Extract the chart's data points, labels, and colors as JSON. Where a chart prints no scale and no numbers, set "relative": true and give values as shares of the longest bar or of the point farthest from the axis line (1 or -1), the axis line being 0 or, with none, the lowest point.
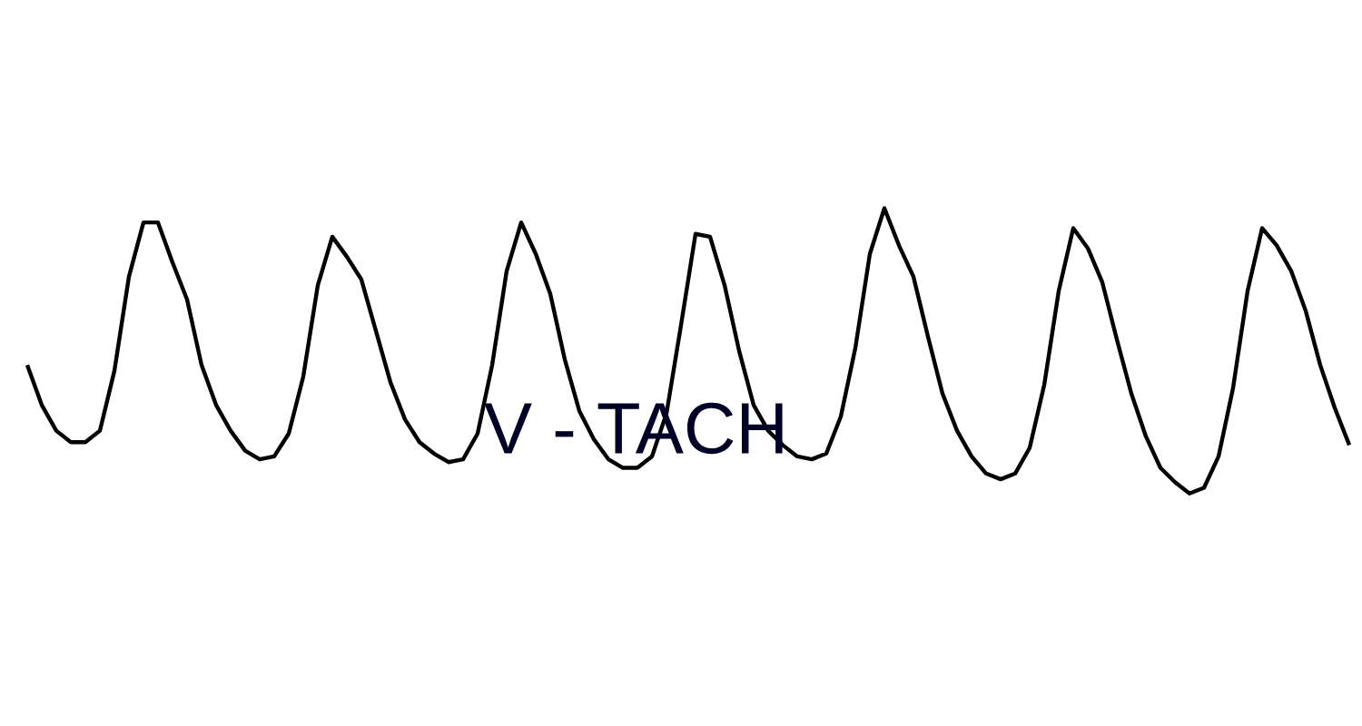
{
  "chart_data": {
    "type": "line",
    "relative": true,
    "annotations": [
      "V - TACH"
    ],
    "tick_labels": false,
    "categories": [
      null,
      null,
      null,
      null,
      null,
      null,
      null,
      null,
      null,
      null,
      null,
      null,
      null,
      null,
      null,
      null,
      null,
      null,
      null,
      null,
      null,
      null,
      null,
      null,
      null,
      null,
      null,
      null,
      null,
      null,
      null,
      null,
      null,
      null,
      null,
      null,
      null,
      null,
      null,
      null,
      null,
      null,
      null,
      null,
      null,
      null,
      null,
      null,
      null,
      null,
      null,
      null,
      null,
      null,
      null,
      null,
      null,
      null,
      null,
      null,
      null,
      null,
      null,
      null,
      null,
      null,
      null,
      null,
      null,
      null,
      null,
      null,
      null,
      null,
      null,
      null,
      null,
      null,
      null,
      null,
      null,
      null,
      null,
      null,
      null,
      null,
      null,
      null,
      null,
      null,
      null,
      null
    ],
    "series": [
      {
        "color": "#000000",
        "values": [
          0.45,
          0.31,
          0.22,
          0.18,
          0.18,
          0.22,
          0.43,
          0.76,
          0.95,
          0.95,
          0.81,
          0.68,
          0.45,
          0.31,
          0.22,
          0.15,
          0.12,
          0.13,
          0.21,
          0.41,
          0.73,
          0.9,
          0.83,
          0.75,
          0.57,
          0.39,
          0.26,
          0.18,
          0.14,
          0.11,
          0.12,
          0.21,
          0.45,
          0.78,
          0.95,
          0.84,
          0.7,
          0.47,
          0.29,
          0.19,
          0.12,
          0.09,
          0.09,
          0.13,
          0.28,
          0.59,
          0.91,
          0.9,
          0.73,
          0.5,
          0.31,
          0.22,
          0.17,
          0.13,
          0.12,
          0.14,
          0.27,
          0.51,
          0.84,
          1,
          0.87,
          0.76,
          0.55,
          0.35,
          0.22,
          0.13,
          0.07,
          0.05,
          0.07,
          0.16,
          0.38,
          0.71,
          0.93,
          0.86,
          0.74,
          0.54,
          0.35,
          0.2,
          0.09,
          0.04,
          0,
          0.02,
          0.13,
          0.37,
          0.71,
          0.93,
          0.87,
          0.78,
          0.64,
          0.45,
          0.3,
          0.17
        ]
      }
    ]
  }
}
